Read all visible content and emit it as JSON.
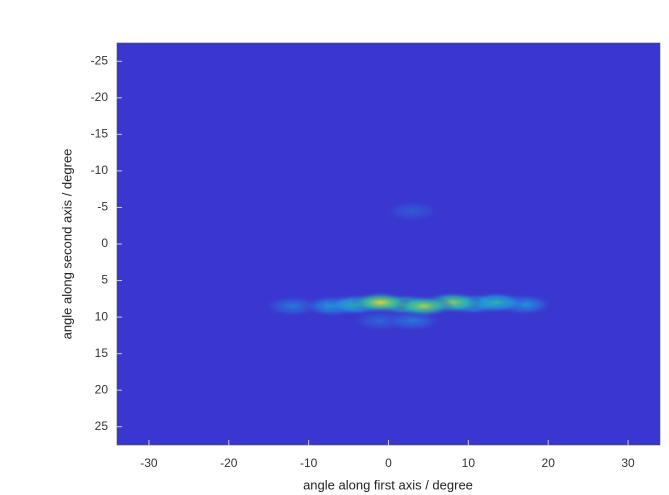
{
  "chart_data": {
    "type": "heatmap",
    "x_label": "angle along first axis / degree",
    "y_label": "angle along second axis / degree",
    "xlim": [
      -34,
      34
    ],
    "ylim": [
      -27.5,
      27.5
    ],
    "y_reversed": true,
    "xticks": [
      -30,
      -20,
      -10,
      0,
      10,
      20,
      30
    ],
    "yticks": [
      -25,
      -20,
      -15,
      -10,
      -5,
      0,
      5,
      10,
      15,
      20,
      25
    ],
    "colormap": [
      "#3a36d0",
      "#1f9fe0",
      "#36c77f",
      "#f5e02a"
    ],
    "spots": [
      {
        "x": 3,
        "y": -4.5,
        "intensity": 0.12
      },
      {
        "x": -1,
        "y": 10.5,
        "intensity": 0.15
      },
      {
        "x": 3,
        "y": 10.5,
        "intensity": 0.2
      },
      {
        "x": -12,
        "y": 8.5,
        "intensity": 0.2
      },
      {
        "x": 17,
        "y": 8.3,
        "intensity": 0.3
      },
      {
        "x": -7,
        "y": 8.5,
        "intensity": 0.35
      },
      {
        "x": -4,
        "y": 8.3,
        "intensity": 0.5
      },
      {
        "x": 10.5,
        "y": 8.2,
        "intensity": 0.5
      },
      {
        "x": 13.5,
        "y": 8,
        "intensity": 0.5
      },
      {
        "x": 2,
        "y": 8.3,
        "intensity": 0.7
      },
      {
        "x": 8,
        "y": 8,
        "intensity": 0.8
      },
      {
        "x": 4.5,
        "y": 8.5,
        "intensity": 0.85
      },
      {
        "x": -1,
        "y": 8,
        "intensity": 0.95
      }
    ]
  }
}
